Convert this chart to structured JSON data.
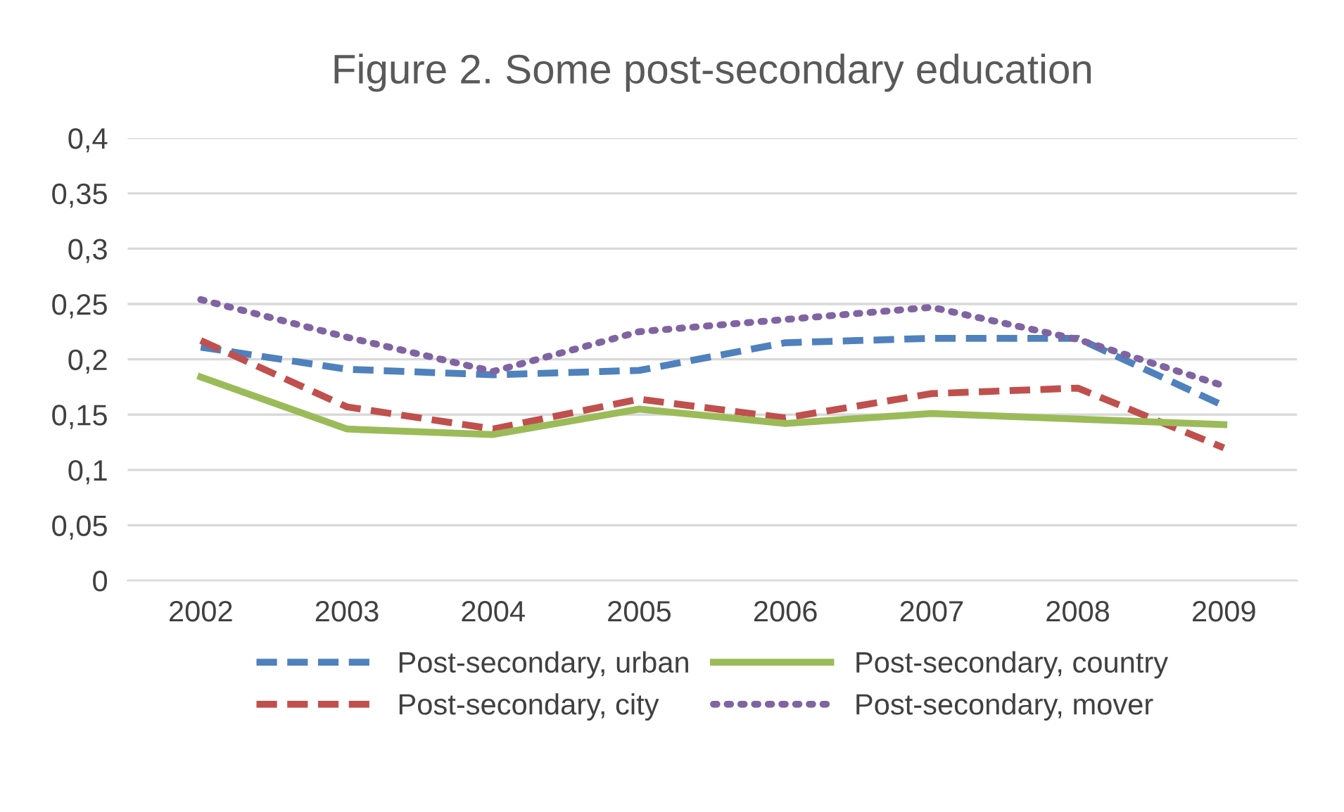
{
  "chart_data": {
    "type": "line",
    "title": "Figure 2. Some post-secondary education",
    "categories": [
      "2002",
      "2003",
      "2004",
      "2005",
      "2006",
      "2007",
      "2008",
      "2009"
    ],
    "series": [
      {
        "name": "Post-secondary, urban",
        "color": "#4f81bd",
        "line_style": "dashed",
        "values": [
          0.211,
          0.191,
          0.186,
          0.19,
          0.215,
          0.219,
          0.219,
          0.158
        ]
      },
      {
        "name": "Post-secondary, city",
        "color": "#c0504d",
        "line_style": "dashed",
        "values": [
          0.217,
          0.157,
          0.137,
          0.164,
          0.147,
          0.169,
          0.174,
          0.12
        ]
      },
      {
        "name": "Post-secondary, country",
        "color": "#9bbb59",
        "line_style": "solid",
        "values": [
          0.184,
          0.137,
          0.132,
          0.155,
          0.142,
          0.151,
          0.146,
          0.141
        ]
      },
      {
        "name": "Post-secondary, mover",
        "color": "#8064a2",
        "line_style": "dotted",
        "values": [
          0.254,
          0.22,
          0.189,
          0.225,
          0.236,
          0.247,
          0.218,
          0.176
        ]
      }
    ],
    "ylim": [
      0,
      0.4
    ],
    "yticks": [
      {
        "value": 0,
        "label": "0"
      },
      {
        "value": 0.05,
        "label": "0,05"
      },
      {
        "value": 0.1,
        "label": "0,1"
      },
      {
        "value": 0.15,
        "label": "0,15"
      },
      {
        "value": 0.2,
        "label": "0,2"
      },
      {
        "value": 0.25,
        "label": "0,25"
      },
      {
        "value": 0.3,
        "label": "0,3"
      },
      {
        "value": 0.35,
        "label": "0,35"
      },
      {
        "value": 0.4,
        "label": "0,4"
      }
    ],
    "grid": "y",
    "legend": "bottom",
    "marker": "none"
  }
}
